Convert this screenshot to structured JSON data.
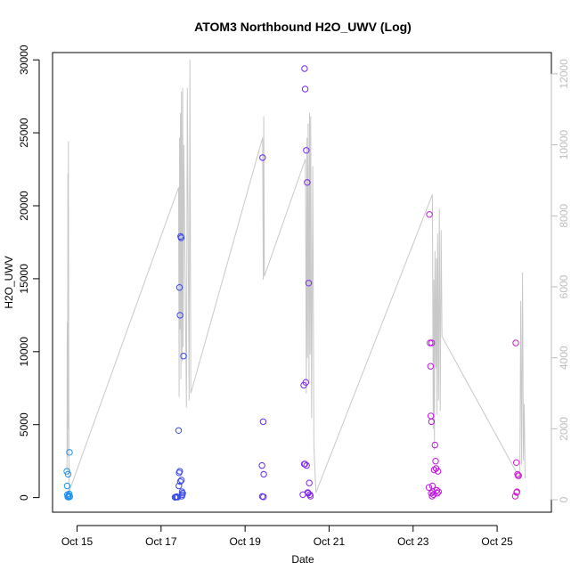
{
  "chart_data": {
    "type": "scatter",
    "title": "ATOM3 Northbound H2O_UWV (Log)",
    "xlabel": "Date",
    "ylabel": "H2O_UWV",
    "xlim": [
      "2016-10-14T10:00",
      "2016-10-26T07:00"
    ],
    "ylim": [
      -1000,
      30500
    ],
    "y2lim": [
      -350,
      12600
    ],
    "x_ticks": [
      {
        "label": "Oct 15",
        "date": "2016-10-15"
      },
      {
        "label": "Oct 17",
        "date": "2016-10-17"
      },
      {
        "label": "Oct 19",
        "date": "2016-10-19"
      },
      {
        "label": "Oct 21",
        "date": "2016-10-21"
      },
      {
        "label": "Oct 23",
        "date": "2016-10-23"
      },
      {
        "label": "Oct 25",
        "date": "2016-10-25"
      }
    ],
    "y_ticks": [
      0,
      5000,
      10000,
      15000,
      20000,
      25000,
      30000
    ],
    "y2_ticks": [
      0,
      2000,
      4000,
      6000,
      8000,
      10000,
      12000
    ],
    "colors": {
      "line": "#c8c8c8",
      "axis": "#000000",
      "right_axis": "#bdbdbd",
      "points_gradient": [
        "#1e9fef",
        "#2a52ee",
        "#5a2ef0",
        "#9b20e8",
        "#c418d8",
        "#e01ecf"
      ]
    },
    "line_series": [
      {
        "segments": [
          [
            "2016-10-14T18:15",
            800
          ],
          [
            "2016-10-14T18:25",
            5000
          ],
          [
            "2016-10-14T18:35",
            1200
          ],
          [
            "2016-10-14T18:45",
            9200
          ],
          [
            "2016-10-14T18:55",
            2000
          ],
          [
            "2016-10-14T19:05",
            10100
          ],
          [
            "2016-10-14T19:15",
            3000
          ],
          [
            "2016-10-14T19:25",
            200
          ],
          [
            "2016-10-14T20:00",
            300
          ],
          [
            "2016-10-17T10:00",
            8800
          ],
          [
            "2016-10-17T10:20",
            2900
          ],
          [
            "2016-10-17T10:35",
            10200
          ],
          [
            "2016-10-17T10:50",
            4800
          ],
          [
            "2016-10-17T11:05",
            10900
          ],
          [
            "2016-10-17T11:20",
            3400
          ],
          [
            "2016-10-17T11:40",
            11500
          ],
          [
            "2016-10-17T12:00",
            3900
          ],
          [
            "2016-10-17T12:20",
            11600
          ],
          [
            "2016-10-17T12:40",
            4300
          ],
          [
            "2016-10-17T13:00",
            10000
          ],
          [
            "2016-10-17T14:30",
            2600
          ],
          [
            "2016-10-17T15:00",
            11600
          ],
          [
            "2016-10-17T16:00",
            2800
          ],
          [
            "2016-10-17T16:30",
            12400
          ],
          [
            "2016-10-17T17:00",
            3000
          ],
          [
            "2016-10-19T10:00",
            10200
          ],
          [
            "2016-10-19T10:25",
            6200
          ],
          [
            "2016-10-19T10:40",
            10800
          ],
          [
            "2016-10-19T11:00",
            6300
          ],
          [
            "2016-10-20T10:30",
            9600
          ],
          [
            "2016-10-20T11:00",
            3000
          ],
          [
            "2016-10-20T11:20",
            10200
          ],
          [
            "2016-10-20T11:40",
            4000
          ],
          [
            "2016-10-20T12:00",
            10600
          ],
          [
            "2016-10-20T12:30",
            3300
          ],
          [
            "2016-10-20T12:50",
            10900
          ],
          [
            "2016-10-20T13:10",
            4100
          ],
          [
            "2016-10-20T13:30",
            10800
          ],
          [
            "2016-10-20T14:00",
            2300
          ],
          [
            "2016-10-20T14:40",
            9400
          ],
          [
            "2016-10-20T15:20",
            1500
          ],
          [
            "2016-10-20T16:30",
            200
          ],
          [
            "2016-10-23T11:00",
            8600
          ],
          [
            "2016-10-23T11:30",
            2000
          ],
          [
            "2016-10-23T11:50",
            6200
          ],
          [
            "2016-10-23T12:10",
            1400
          ],
          [
            "2016-10-23T12:30",
            7000
          ],
          [
            "2016-10-23T13:00",
            3700
          ],
          [
            "2016-10-23T13:20",
            6800
          ],
          [
            "2016-10-23T13:40",
            2400
          ],
          [
            "2016-10-23T14:00",
            7500
          ],
          [
            "2016-10-23T14:30",
            2800
          ],
          [
            "2016-10-23T15:00",
            8200
          ],
          [
            "2016-10-23T15:30",
            2500
          ],
          [
            "2016-10-23T16:00",
            7600
          ],
          [
            "2016-10-23T16:30",
            4600
          ],
          [
            "2016-10-25T13:00",
            600
          ],
          [
            "2016-10-25T13:30",
            5600
          ],
          [
            "2016-10-25T14:00",
            1000
          ],
          [
            "2016-10-25T14:30",
            6400
          ],
          [
            "2016-10-25T15:00",
            1100
          ],
          [
            "2016-10-25T15:30",
            2700
          ],
          [
            "2016-10-25T16:00",
            600
          ]
        ]
      }
    ],
    "points": [
      [
        "2016-10-14T18:10",
        1800
      ],
      [
        "2016-10-14T18:20",
        800
      ],
      [
        "2016-10-14T18:30",
        200
      ],
      [
        "2016-10-14T18:40",
        50
      ],
      [
        "2016-10-14T18:50",
        1600
      ],
      [
        "2016-10-14T19:00",
        100
      ],
      [
        "2016-10-14T19:10",
        30
      ],
      [
        "2016-10-14T19:20",
        150
      ],
      [
        "2016-10-14T19:30",
        250
      ],
      [
        "2016-10-14T19:40",
        3100
      ],
      [
        "2016-10-14T19:50",
        60
      ],
      [
        "2016-10-17T10:00",
        4600
      ],
      [
        "2016-10-17T10:10",
        800
      ],
      [
        "2016-10-17T10:20",
        1700
      ],
      [
        "2016-10-17T10:30",
        14400
      ],
      [
        "2016-10-17T10:40",
        1800
      ],
      [
        "2016-10-17T10:50",
        12500
      ],
      [
        "2016-10-17T11:00",
        1100
      ],
      [
        "2016-10-17T11:10",
        17900
      ],
      [
        "2016-10-17T11:30",
        17800
      ],
      [
        "2016-10-17T11:40",
        1200
      ],
      [
        "2016-10-17T12:00",
        400
      ],
      [
        "2016-10-17T12:20",
        300
      ],
      [
        "2016-10-17T12:50",
        9700
      ],
      [
        "2016-10-17T08:00",
        20
      ],
      [
        "2016-10-17T08:30",
        40
      ],
      [
        "2016-10-17T09:00",
        60
      ],
      [
        "2016-10-17T09:30",
        30
      ],
      [
        "2016-10-17T11:50",
        100
      ],
      [
        "2016-10-17T12:10",
        200
      ],
      [
        "2016-10-19T09:40",
        2200
      ],
      [
        "2016-10-19T10:00",
        23300
      ],
      [
        "2016-10-19T10:20",
        5200
      ],
      [
        "2016-10-19T10:40",
        1600
      ],
      [
        "2016-10-19T09:50",
        80
      ],
      [
        "2016-10-19T10:30",
        50
      ],
      [
        "2016-10-20T09:00",
        200
      ],
      [
        "2016-10-20T09:30",
        7700
      ],
      [
        "2016-10-20T09:50",
        2300
      ],
      [
        "2016-10-20T10:10",
        2300
      ],
      [
        "2016-10-20T10:00",
        29400
      ],
      [
        "2016-10-20T10:20",
        28000
      ],
      [
        "2016-10-20T10:40",
        7900
      ],
      [
        "2016-10-20T11:00",
        23800
      ],
      [
        "2016-10-20T11:10",
        2200
      ],
      [
        "2016-10-20T11:30",
        21600
      ],
      [
        "2016-10-20T12:00",
        300
      ],
      [
        "2016-10-20T12:20",
        14700
      ],
      [
        "2016-10-20T12:40",
        1000
      ],
      [
        "2016-10-20T13:00",
        200
      ],
      [
        "2016-10-20T13:20",
        100
      ],
      [
        "2016-10-20T11:50",
        350
      ],
      [
        "2016-10-23T09:00",
        700
      ],
      [
        "2016-10-23T09:20",
        19400
      ],
      [
        "2016-10-23T09:40",
        10600
      ],
      [
        "2016-10-23T10:00",
        9000
      ],
      [
        "2016-10-23T10:10",
        5600
      ],
      [
        "2016-10-23T10:30",
        5200
      ],
      [
        "2016-10-23T10:40",
        10600
      ],
      [
        "2016-10-23T11:00",
        800
      ],
      [
        "2016-10-23T11:20",
        400
      ],
      [
        "2016-10-23T11:40",
        200
      ],
      [
        "2016-10-23T12:00",
        1900
      ],
      [
        "2016-10-23T12:30",
        3600
      ],
      [
        "2016-10-23T12:50",
        2500
      ],
      [
        "2016-10-23T13:10",
        2000
      ],
      [
        "2016-10-23T13:30",
        500
      ],
      [
        "2016-10-23T13:50",
        300
      ],
      [
        "2016-10-23T14:10",
        1800
      ],
      [
        "2016-10-23T14:30",
        400
      ],
      [
        "2016-10-23T10:20",
        300
      ],
      [
        "2016-10-23T10:50",
        100
      ],
      [
        "2016-10-25T10:40",
        10600
      ],
      [
        "2016-10-25T10:20",
        100
      ],
      [
        "2016-10-25T11:00",
        2400
      ],
      [
        "2016-10-25T11:20",
        400
      ],
      [
        "2016-10-25T11:40",
        1600
      ],
      [
        "2016-10-25T12:00",
        1500
      ],
      [
        "2016-10-25T12:20",
        1500
      ],
      [
        "2016-10-25T11:10",
        350
      ]
    ]
  }
}
